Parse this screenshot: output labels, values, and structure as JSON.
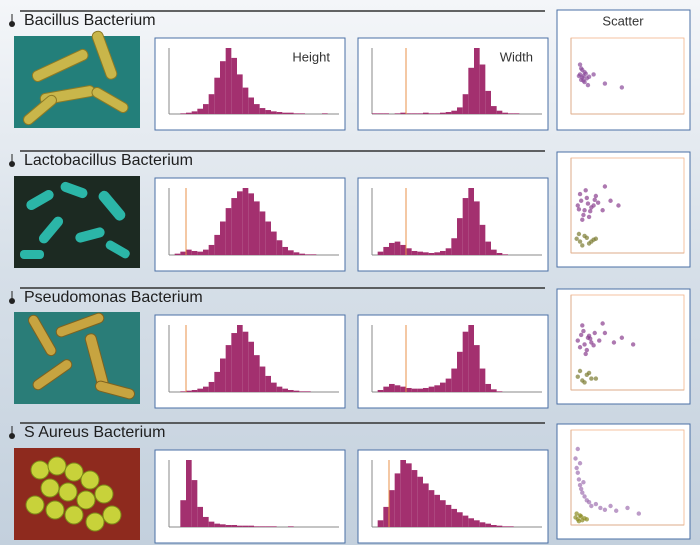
{
  "labels": {
    "height": "Height",
    "width": "Width",
    "scatter": "Scatter"
  },
  "rows": [
    {
      "title": "Bacillus Bacterium",
      "height_hist": {
        "values": [
          0,
          0,
          1,
          2,
          4,
          8,
          15,
          30,
          55,
          80,
          100,
          85,
          60,
          40,
          25,
          15,
          9,
          6,
          4,
          3,
          2,
          2,
          1,
          1,
          0,
          0,
          0,
          1,
          0,
          0
        ]
      },
      "width_hist": {
        "gate": 6,
        "values": [
          1,
          1,
          1,
          0,
          1,
          2,
          1,
          1,
          1,
          2,
          1,
          1,
          2,
          3,
          5,
          10,
          30,
          70,
          100,
          75,
          35,
          12,
          5,
          2,
          1,
          1,
          0,
          0,
          0,
          0
        ]
      },
      "scatter": {
        "series": [
          {
            "color": "#8a4a9a",
            "x": [
              8,
              10,
              12,
              9,
              11,
              14,
              7,
              13,
              10,
              12,
              16,
              9,
              11,
              20,
              30,
              45,
              15,
              8
            ],
            "y": [
              52,
              48,
              55,
              45,
              50,
              47,
              50,
              53,
              58,
              42,
              49,
              60,
              44,
              52,
              40,
              35,
              38,
              65
            ]
          }
        ]
      }
    },
    {
      "title": "Lactobacillus Bacterium",
      "height_hist": {
        "gate": 3,
        "values": [
          0,
          2,
          5,
          8,
          6,
          5,
          8,
          15,
          30,
          50,
          70,
          85,
          95,
          100,
          92,
          80,
          65,
          50,
          35,
          22,
          12,
          7,
          4,
          2,
          1,
          1,
          0,
          0,
          0,
          0
        ]
      },
      "width_hist": {
        "gate": 6,
        "values": [
          0,
          5,
          12,
          18,
          20,
          15,
          10,
          6,
          5,
          4,
          3,
          4,
          6,
          10,
          25,
          55,
          85,
          100,
          80,
          45,
          20,
          8,
          3,
          1,
          0,
          0,
          0,
          0,
          0,
          0
        ]
      },
      "scatter": {
        "series": [
          {
            "color": "#8a3f8f",
            "x": [
              6,
              9,
              12,
              15,
              18,
              21,
              8,
              11,
              14,
              17,
              20,
              24,
              10,
              13,
              16,
              7,
              22,
              28,
              35,
              42,
              30
            ],
            "y": [
              50,
              55,
              45,
              52,
              48,
              56,
              62,
              40,
              58,
              44,
              50,
              53,
              35,
              66,
              38,
              46,
              60,
              45,
              55,
              50,
              70
            ]
          },
          {
            "color": "#7a7a30",
            "x": [
              5,
              8,
              12,
              16,
              20,
              10,
              14,
              18,
              7,
              22
            ],
            "y": [
              15,
              12,
              18,
              10,
              14,
              8,
              16,
              12,
              20,
              15
            ]
          }
        ]
      }
    },
    {
      "title": "Pseudomonas Bacterium",
      "height_hist": {
        "gate": 3,
        "values": [
          0,
          0,
          1,
          2,
          3,
          5,
          8,
          15,
          30,
          50,
          70,
          88,
          100,
          90,
          75,
          55,
          38,
          24,
          14,
          8,
          5,
          3,
          2,
          1,
          1,
          0,
          0,
          0,
          0,
          0
        ]
      },
      "width_hist": {
        "gate": 6,
        "values": [
          0,
          3,
          8,
          12,
          10,
          8,
          6,
          5,
          5,
          6,
          8,
          10,
          14,
          20,
          35,
          60,
          90,
          100,
          70,
          35,
          12,
          4,
          1,
          0,
          0,
          0,
          0,
          0,
          0,
          0
        ]
      },
      "scatter": {
        "series": [
          {
            "color": "#8a3f8f",
            "x": [
              6,
              9,
              12,
              15,
              18,
              21,
              8,
              11,
              14,
              17,
              20,
              25,
              10,
              13,
              16,
              30,
              38,
              45,
              55,
              28
            ],
            "y": [
              52,
              58,
              48,
              55,
              50,
              60,
              45,
              62,
              42,
              54,
              47,
              52,
              68,
              38,
              57,
              60,
              50,
              55,
              48,
              70
            ]
          },
          {
            "color": "#7a7a30",
            "x": [
              6,
              10,
              14,
              18,
              8,
              12,
              16,
              22
            ],
            "y": [
              14,
              10,
              16,
              12,
              20,
              8,
              18,
              12
            ]
          }
        ]
      }
    },
    {
      "title": "S Aureus Bacterium",
      "height_hist": {
        "values": [
          0,
          0,
          40,
          100,
          70,
          30,
          15,
          8,
          5,
          4,
          3,
          3,
          2,
          2,
          2,
          1,
          1,
          1,
          1,
          0,
          0,
          1,
          0,
          0,
          0,
          0,
          0,
          0,
          0,
          0
        ]
      },
      "width_hist": {
        "gate": 3,
        "values": [
          0,
          10,
          30,
          55,
          80,
          100,
          95,
          85,
          75,
          65,
          55,
          48,
          40,
          33,
          27,
          22,
          17,
          13,
          10,
          7,
          5,
          3,
          2,
          1,
          1,
          0,
          0,
          0,
          0,
          0
        ]
      },
      "scatter": {
        "series": [
          {
            "color": "#a070b0",
            "x": [
              4,
              5,
              6,
              7,
              8,
              9,
              10,
              12,
              14,
              16,
              18,
              22,
              26,
              30,
              35,
              40,
              50,
              60,
              6,
              8,
              11
            ],
            "y": [
              70,
              60,
              55,
              48,
              42,
              38,
              34,
              30,
              26,
              24,
              20,
              22,
              18,
              16,
              20,
              15,
              18,
              12,
              80,
              65,
              45
            ]
          },
          {
            "color": "#8a8a20",
            "x": [
              4,
              6,
              8,
              10,
              12,
              5,
              7,
              9,
              14
            ],
            "y": [
              8,
              6,
              10,
              5,
              7,
              12,
              4,
              9,
              6
            ]
          }
        ]
      }
    }
  ]
}
